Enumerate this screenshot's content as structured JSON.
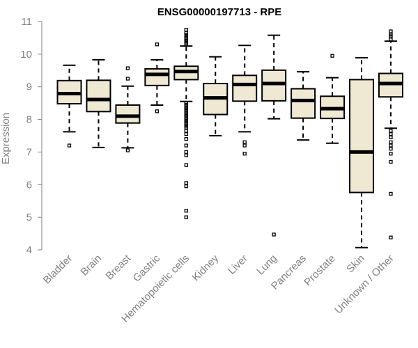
{
  "chart_data": {
    "type": "box",
    "title": "ENSG00000197713 - RPE",
    "ylabel": "Expression",
    "xlabel": "",
    "ylim": [
      4,
      11
    ],
    "yticks": [
      4,
      5,
      6,
      7,
      8,
      9,
      10,
      11
    ],
    "box_fill": "#efe8d3",
    "categories": [
      "Bladder",
      "Brain",
      "Breast",
      "Gastric",
      "Hematopoietic cells",
      "Kidney",
      "Liver",
      "Lung",
      "Pancreas",
      "Prostate",
      "Skin",
      "Unknown / Other"
    ],
    "boxes": [
      {
        "category": "Bladder",
        "whisker_low": 7.62,
        "q1": 8.48,
        "median": 8.79,
        "q3": 9.19,
        "whisker_high": 9.66,
        "outliers": [
          7.2
        ]
      },
      {
        "category": "Brain",
        "whisker_low": 7.14,
        "q1": 8.24,
        "median": 8.61,
        "q3": 9.2,
        "whisker_high": 9.83,
        "outliers": []
      },
      {
        "category": "Breast",
        "whisker_low": 7.13,
        "q1": 7.89,
        "median": 8.1,
        "q3": 8.44,
        "whisker_high": 9.02,
        "outliers": [
          7.05,
          9.25,
          9.57
        ]
      },
      {
        "category": "Gastric",
        "whisker_low": 8.44,
        "q1": 9.04,
        "median": 9.38,
        "q3": 9.55,
        "whisker_high": 9.83,
        "outliers": [
          8.25,
          10.3
        ]
      },
      {
        "category": "Hematopoietic cells",
        "whisker_low": 8.55,
        "q1": 9.22,
        "median": 9.47,
        "q3": 9.63,
        "whisker_high": 10.25,
        "outliers": [
          5.0,
          5.2,
          5.95,
          6.05,
          6.6,
          6.9,
          7.0,
          7.2,
          7.4,
          7.55,
          7.65,
          7.75,
          7.8,
          7.85,
          7.9,
          7.95,
          8.0,
          8.05,
          8.1,
          8.15,
          8.2,
          8.25,
          8.3,
          8.35,
          8.4,
          8.45,
          8.5,
          10.3,
          10.35,
          10.4,
          10.45,
          10.5,
          10.55,
          10.6,
          10.65,
          10.75
        ]
      },
      {
        "category": "Kidney",
        "whisker_low": 7.5,
        "q1": 8.15,
        "median": 8.66,
        "q3": 9.1,
        "whisker_high": 9.92,
        "outliers": []
      },
      {
        "category": "Liver",
        "whisker_low": 7.62,
        "q1": 8.56,
        "median": 9.07,
        "q3": 9.35,
        "whisker_high": 10.27,
        "outliers": [
          6.95,
          7.2,
          7.3
        ]
      },
      {
        "category": "Lung",
        "whisker_low": 8.02,
        "q1": 8.57,
        "median": 9.1,
        "q3": 9.51,
        "whisker_high": 10.58,
        "outliers": [
          4.47
        ]
      },
      {
        "category": "Pancreas",
        "whisker_low": 7.37,
        "q1": 8.04,
        "median": 8.58,
        "q3": 8.94,
        "whisker_high": 9.46,
        "outliers": []
      },
      {
        "category": "Prostate",
        "whisker_low": 7.27,
        "q1": 8.03,
        "median": 8.33,
        "q3": 8.71,
        "whisker_high": 9.28,
        "outliers": [
          9.95
        ]
      },
      {
        "category": "Skin",
        "whisker_low": 4.07,
        "q1": 5.76,
        "median": 7.0,
        "q3": 9.22,
        "whisker_high": 9.89,
        "outliers": []
      },
      {
        "category": "Unknown / Other",
        "whisker_low": 7.73,
        "q1": 8.69,
        "median": 9.1,
        "q3": 9.41,
        "whisker_high": 10.4,
        "outliers": [
          4.38,
          5.72,
          6.7,
          6.95,
          7.1,
          7.2,
          7.3,
          7.45,
          7.55,
          7.65,
          10.45,
          10.55,
          10.6,
          10.7
        ]
      }
    ]
  }
}
